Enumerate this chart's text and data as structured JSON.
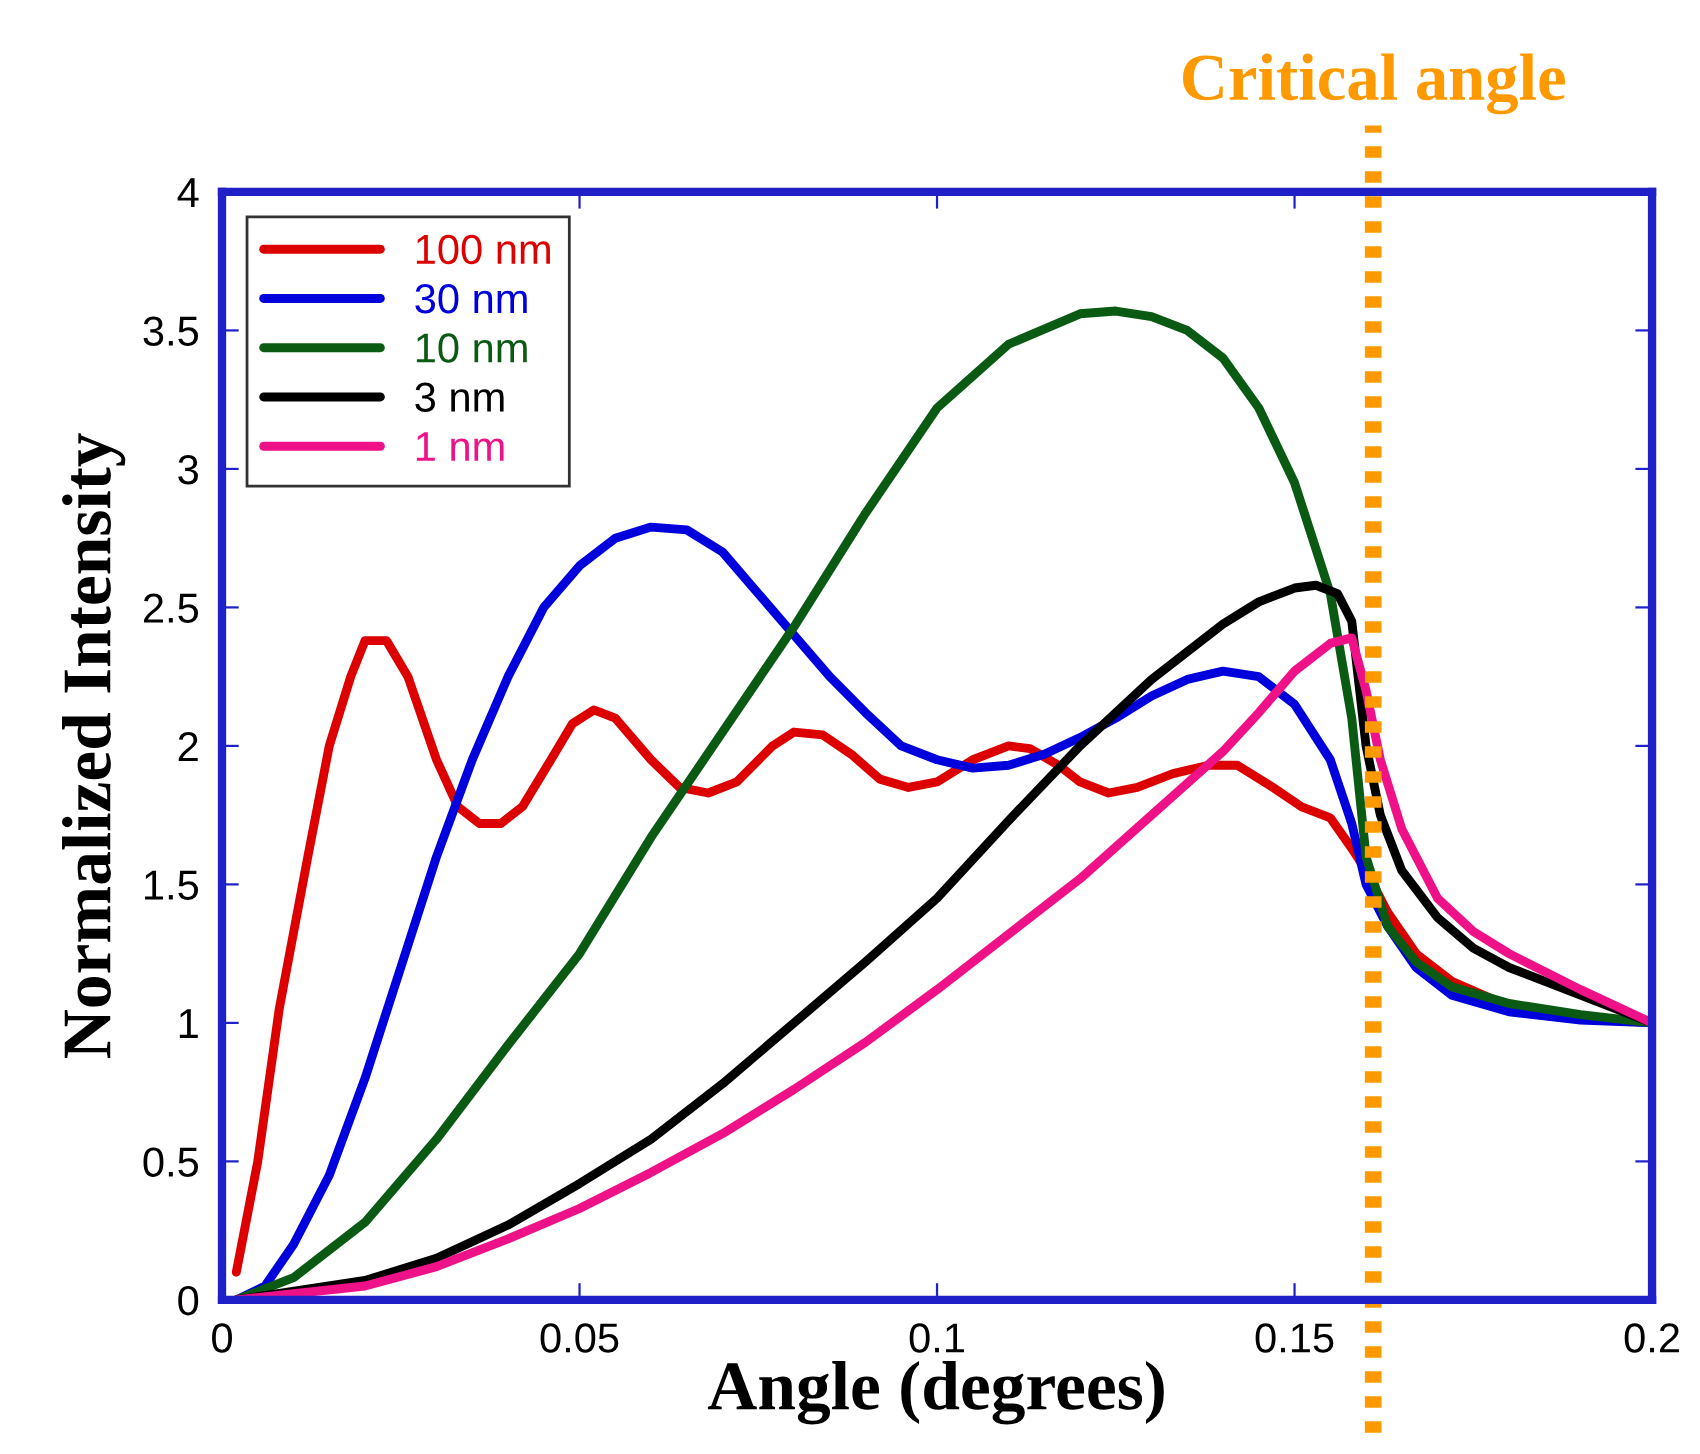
{
  "chart_data": {
    "type": "line",
    "xlabel": "Angle (degrees)",
    "ylabel": "Normalized Intensity",
    "xlim": [
      0,
      0.2
    ],
    "ylim": [
      0,
      4
    ],
    "xticks": [
      0,
      0.05,
      0.1,
      0.15,
      0.2
    ],
    "yticks": [
      0,
      0.5,
      1,
      1.5,
      2,
      2.5,
      3,
      3.5,
      4
    ],
    "grid": false,
    "legend": "top left",
    "marker": "none",
    "line_style": "solid",
    "ref_lines": [
      {
        "axis": "x",
        "value": 0.161,
        "label": "Critical angle",
        "color": "#ff9900",
        "line_style": "dotted"
      }
    ],
    "series": [
      {
        "name": "100 nm",
        "color": "#dd0000",
        "x": [
          0.002,
          0.005,
          0.008,
          0.012,
          0.015,
          0.018,
          0.02,
          0.023,
          0.026,
          0.03,
          0.033,
          0.036,
          0.039,
          0.042,
          0.046,
          0.049,
          0.052,
          0.055,
          0.06,
          0.064,
          0.068,
          0.072,
          0.077,
          0.08,
          0.084,
          0.088,
          0.092,
          0.096,
          0.1,
          0.105,
          0.11,
          0.113,
          0.117,
          0.12,
          0.124,
          0.128,
          0.133,
          0.138,
          0.142,
          0.147,
          0.151,
          0.155,
          0.158,
          0.16,
          0.163,
          0.167,
          0.172,
          0.18,
          0.19,
          0.2
        ],
        "values": [
          0.1,
          0.5,
          1.05,
          1.6,
          2.0,
          2.25,
          2.38,
          2.38,
          2.25,
          1.95,
          1.78,
          1.72,
          1.72,
          1.78,
          1.95,
          2.08,
          2.13,
          2.1,
          1.95,
          1.85,
          1.83,
          1.87,
          2.0,
          2.05,
          2.04,
          1.97,
          1.88,
          1.85,
          1.87,
          1.95,
          2.0,
          1.99,
          1.93,
          1.87,
          1.83,
          1.85,
          1.9,
          1.93,
          1.93,
          1.85,
          1.78,
          1.74,
          1.63,
          1.55,
          1.4,
          1.25,
          1.15,
          1.06,
          1.02,
          1.0
        ]
      },
      {
        "name": "30 nm",
        "color": "#0000dd",
        "x": [
          0.002,
          0.006,
          0.01,
          0.015,
          0.02,
          0.025,
          0.03,
          0.035,
          0.04,
          0.045,
          0.05,
          0.055,
          0.06,
          0.065,
          0.07,
          0.075,
          0.08,
          0.085,
          0.09,
          0.095,
          0.1,
          0.105,
          0.11,
          0.115,
          0.12,
          0.125,
          0.13,
          0.135,
          0.14,
          0.145,
          0.15,
          0.155,
          0.158,
          0.16,
          0.163,
          0.167,
          0.172,
          0.18,
          0.19,
          0.2
        ],
        "values": [
          0,
          0.05,
          0.2,
          0.45,
          0.8,
          1.2,
          1.6,
          1.95,
          2.25,
          2.5,
          2.65,
          2.75,
          2.79,
          2.78,
          2.7,
          2.55,
          2.4,
          2.25,
          2.12,
          2.0,
          1.95,
          1.92,
          1.93,
          1.97,
          2.03,
          2.1,
          2.18,
          2.24,
          2.27,
          2.25,
          2.15,
          1.95,
          1.72,
          1.5,
          1.35,
          1.2,
          1.1,
          1.04,
          1.01,
          1.0
        ]
      },
      {
        "name": "10 nm",
        "color": "#0a5a14",
        "x": [
          0.002,
          0.01,
          0.02,
          0.03,
          0.04,
          0.05,
          0.06,
          0.07,
          0.08,
          0.09,
          0.1,
          0.11,
          0.12,
          0.125,
          0.13,
          0.135,
          0.14,
          0.145,
          0.15,
          0.155,
          0.158,
          0.16,
          0.163,
          0.167,
          0.172,
          0.18,
          0.19,
          0.2
        ],
        "values": [
          0,
          0.08,
          0.28,
          0.58,
          0.92,
          1.25,
          1.67,
          2.05,
          2.43,
          2.84,
          3.22,
          3.45,
          3.56,
          3.57,
          3.55,
          3.5,
          3.4,
          3.22,
          2.95,
          2.55,
          2.1,
          1.6,
          1.35,
          1.22,
          1.13,
          1.07,
          1.03,
          1.0
        ]
      },
      {
        "name": "3 nm",
        "color": "#000000",
        "x": [
          0.002,
          0.02,
          0.03,
          0.04,
          0.05,
          0.06,
          0.07,
          0.08,
          0.09,
          0.1,
          0.11,
          0.12,
          0.13,
          0.14,
          0.145,
          0.15,
          0.153,
          0.156,
          0.158,
          0.16,
          0.162,
          0.165,
          0.17,
          0.175,
          0.18,
          0.19,
          0.2
        ],
        "values": [
          0,
          0.07,
          0.15,
          0.27,
          0.42,
          0.58,
          0.78,
          1.0,
          1.22,
          1.45,
          1.73,
          2.0,
          2.24,
          2.44,
          2.52,
          2.57,
          2.58,
          2.55,
          2.45,
          2.0,
          1.75,
          1.55,
          1.38,
          1.27,
          1.2,
          1.1,
          1.0
        ]
      },
      {
        "name": "1 nm",
        "color": "#ee1188",
        "x": [
          0.002,
          0.02,
          0.03,
          0.04,
          0.05,
          0.06,
          0.07,
          0.08,
          0.09,
          0.1,
          0.11,
          0.12,
          0.13,
          0.14,
          0.145,
          0.15,
          0.155,
          0.158,
          0.16,
          0.162,
          0.165,
          0.17,
          0.175,
          0.18,
          0.19,
          0.2
        ],
        "values": [
          0,
          0.05,
          0.12,
          0.22,
          0.33,
          0.46,
          0.6,
          0.76,
          0.93,
          1.12,
          1.32,
          1.52,
          1.75,
          1.98,
          2.12,
          2.27,
          2.37,
          2.39,
          2.2,
          1.95,
          1.7,
          1.45,
          1.33,
          1.25,
          1.12,
          1.0
        ]
      }
    ]
  }
}
